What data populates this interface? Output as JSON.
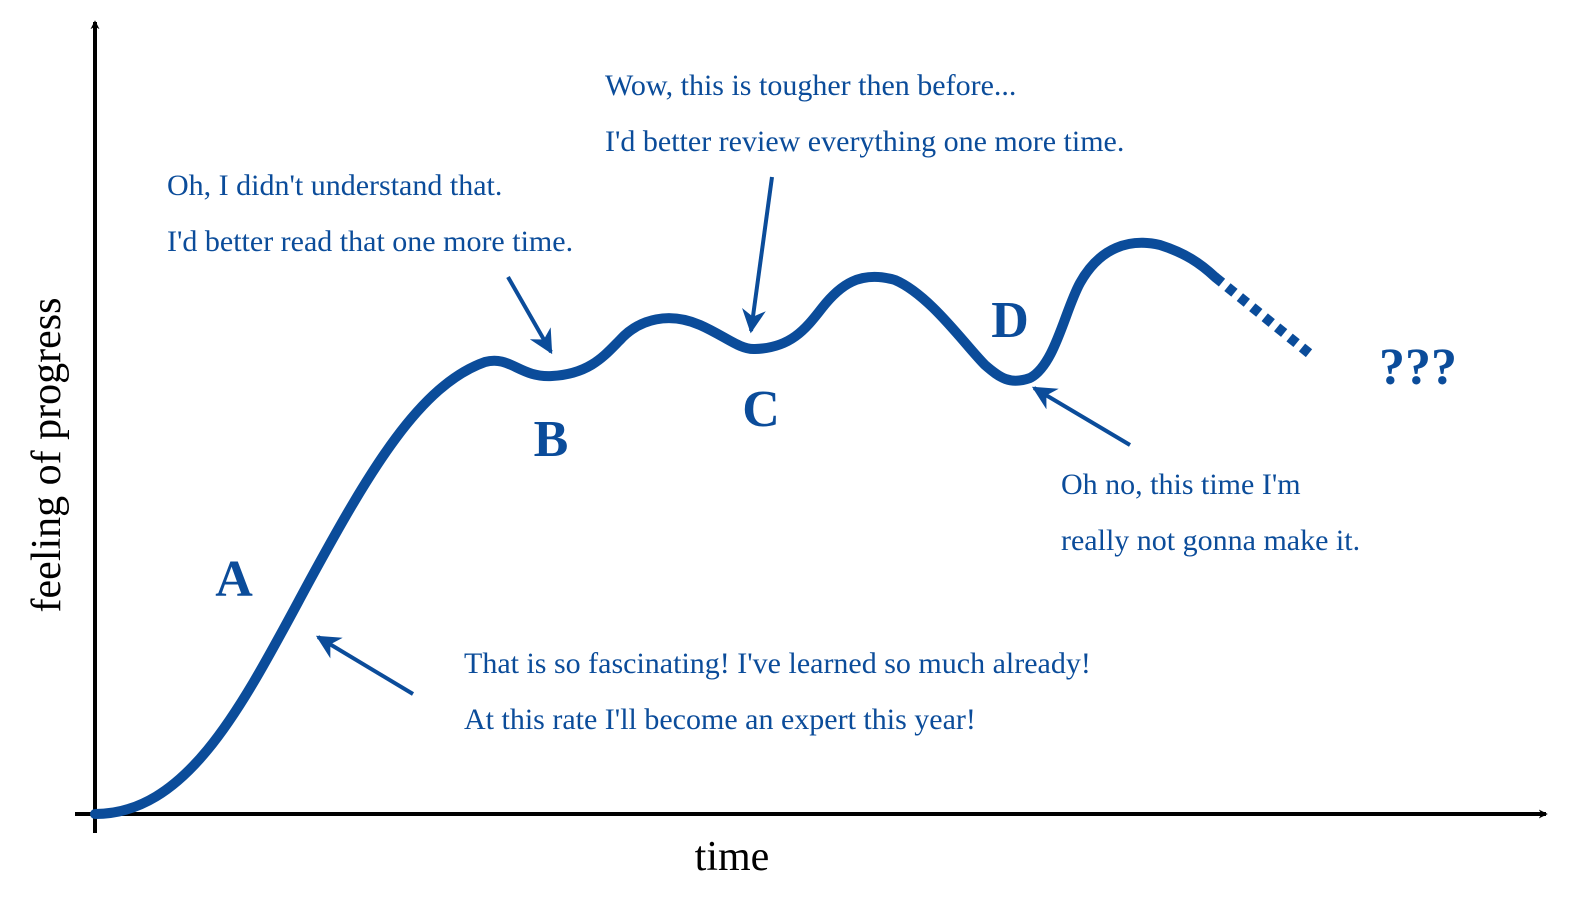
{
  "axes": {
    "y_label": "feeling of progress",
    "x_label": "time"
  },
  "points": {
    "a": "A",
    "b": "B",
    "c": "C",
    "d": "D",
    "unknown": "???"
  },
  "notes": {
    "a": {
      "line1": "That is so fascinating! I've learned so much already!",
      "line2": "At this rate I'll become an expert this year!"
    },
    "b": {
      "line1": "Oh, I didn't understand that.",
      "line2": "I'd better read that one more time."
    },
    "c": {
      "line1": "Wow, this is tougher then before...",
      "line2": "I'd better review everything one more time."
    },
    "d": {
      "line1": "Oh no, this time I'm",
      "line2": "really not gonna make it."
    }
  },
  "colors": {
    "curve": "#0b4c9a",
    "text": "#0b4c9a",
    "axis": "#000000"
  }
}
